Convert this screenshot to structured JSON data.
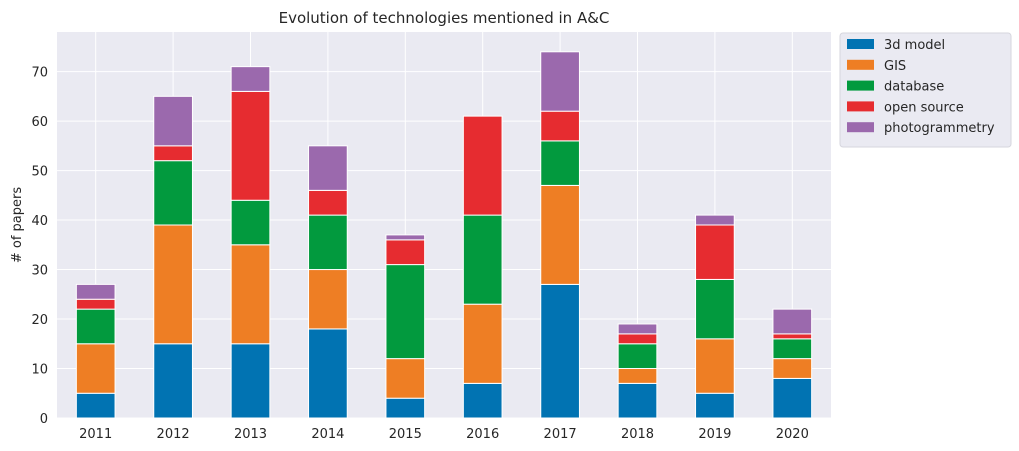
{
  "chart_data": {
    "type": "bar",
    "stacked": true,
    "title": "Evolution of technologies mentioned in A&C",
    "xlabel": "",
    "ylabel": "# of papers",
    "ylim": [
      0,
      78
    ],
    "yticks": [
      0,
      10,
      20,
      30,
      40,
      50,
      60,
      70
    ],
    "grid": true,
    "legend_position": "outside-top-right",
    "categories": [
      "2011",
      "2012",
      "2013",
      "2014",
      "2015",
      "2016",
      "2017",
      "2018",
      "2019",
      "2020"
    ],
    "series": [
      {
        "name": "3d model",
        "color": "#0173b2",
        "values": [
          5,
          15,
          15,
          18,
          4,
          7,
          27,
          7,
          5,
          8
        ]
      },
      {
        "name": "GIS",
        "color": "#ee7e24",
        "values": [
          10,
          24,
          20,
          12,
          8,
          16,
          20,
          3,
          11,
          4
        ]
      },
      {
        "name": "database",
        "color": "#029a3e",
        "values": [
          7,
          13,
          9,
          11,
          19,
          18,
          9,
          5,
          12,
          4
        ]
      },
      {
        "name": "open source",
        "color": "#e62c30",
        "values": [
          2,
          3,
          22,
          5,
          5,
          20,
          6,
          2,
          11,
          1
        ]
      },
      {
        "name": "photogrammetry",
        "color": "#9b69ad",
        "values": [
          3,
          10,
          5,
          9,
          1,
          0,
          12,
          2,
          2,
          5
        ]
      }
    ]
  },
  "style": {
    "plot_background": "#eaeaf2",
    "grid_color": "#ffffff",
    "text_color": "#262626"
  }
}
